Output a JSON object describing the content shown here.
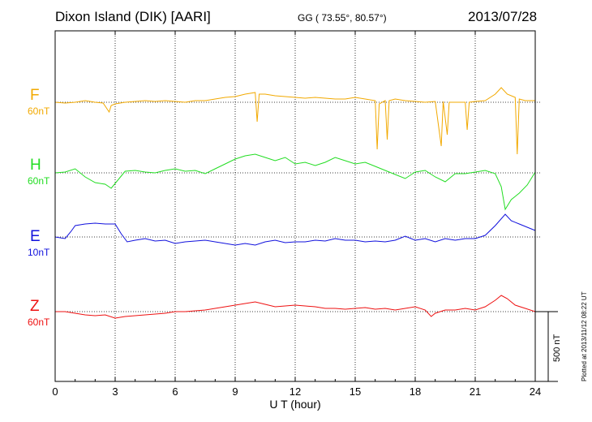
{
  "header": {
    "station": "Dixon Island (DIK)  [AARI]",
    "coords": "GG ( 73.55°,  80.57°)",
    "date": "2013/07/28"
  },
  "footer": {
    "plotted": "Plotted at 2013/11/12 08:22 UT",
    "scale_bar_label": "500 nT"
  },
  "chart_data": {
    "type": "line",
    "xlabel": "U T (hour)",
    "xlim": [
      0,
      24
    ],
    "x_ticks": [
      "0",
      "3",
      "6",
      "9",
      "12",
      "15",
      "18",
      "21",
      "24"
    ],
    "grid": true,
    "series": [
      {
        "name": "F",
        "scale": "60nT",
        "color": "#f2a900",
        "points": [
          [
            0,
            126
          ],
          [
            0.5,
            127
          ],
          [
            1,
            126
          ],
          [
            1.5,
            124
          ],
          [
            2,
            126
          ],
          [
            2.4,
            127
          ],
          [
            2.7,
            138
          ],
          [
            2.8,
            130
          ],
          [
            3,
            128
          ],
          [
            3.5,
            126
          ],
          [
            4,
            125
          ],
          [
            4.5,
            124
          ],
          [
            5,
            125
          ],
          [
            5.5,
            124
          ],
          [
            6,
            125
          ],
          [
            6.5,
            126
          ],
          [
            7,
            124
          ],
          [
            7.5,
            124
          ],
          [
            8,
            122
          ],
          [
            8.5,
            120
          ],
          [
            9,
            119
          ],
          [
            9.5,
            116
          ],
          [
            10,
            114
          ],
          [
            10.1,
            150
          ],
          [
            10.2,
            116
          ],
          [
            10.5,
            116
          ],
          [
            11,
            118
          ],
          [
            11.5,
            119
          ],
          [
            12,
            120
          ],
          [
            12.5,
            121
          ],
          [
            13,
            120
          ],
          [
            13.5,
            121
          ],
          [
            14,
            122
          ],
          [
            14.5,
            122
          ],
          [
            15,
            120
          ],
          [
            15.5,
            122
          ],
          [
            16,
            124
          ],
          [
            16.1,
            184
          ],
          [
            16.2,
            128
          ],
          [
            16.5,
            124
          ],
          [
            16.6,
            172
          ],
          [
            16.7,
            124
          ],
          [
            17,
            122
          ],
          [
            17.5,
            124
          ],
          [
            18,
            125
          ],
          [
            18.5,
            126
          ],
          [
            19,
            125
          ],
          [
            19.3,
            180
          ],
          [
            19.4,
            125
          ],
          [
            19.6,
            166
          ],
          [
            19.7,
            126
          ],
          [
            20,
            126
          ],
          [
            20.5,
            126
          ],
          [
            20.6,
            160
          ],
          [
            20.7,
            126
          ],
          [
            21,
            125
          ],
          [
            21.5,
            124
          ],
          [
            22,
            116
          ],
          [
            22.3,
            108
          ],
          [
            22.6,
            116
          ],
          [
            23,
            120
          ],
          [
            23.1,
            190
          ],
          [
            23.2,
            122
          ],
          [
            23.5,
            124
          ],
          [
            24,
            124
          ]
        ]
      },
      {
        "name": "H",
        "scale": "60nT",
        "color": "#22dd22",
        "points": [
          [
            0,
            213
          ],
          [
            0.5,
            212
          ],
          [
            1,
            208
          ],
          [
            1.5,
            218
          ],
          [
            2,
            225
          ],
          [
            2.5,
            227
          ],
          [
            2.8,
            232
          ],
          [
            3,
            226
          ],
          [
            3.5,
            211
          ],
          [
            4,
            210
          ],
          [
            4.5,
            212
          ],
          [
            5,
            213
          ],
          [
            5.5,
            210
          ],
          [
            6,
            208
          ],
          [
            6.5,
            211
          ],
          [
            7,
            210
          ],
          [
            7.5,
            214
          ],
          [
            8,
            208
          ],
          [
            8.5,
            202
          ],
          [
            9,
            196
          ],
          [
            9.5,
            192
          ],
          [
            10,
            190
          ],
          [
            10.5,
            194
          ],
          [
            11,
            198
          ],
          [
            11.5,
            194
          ],
          [
            12,
            202
          ],
          [
            12.5,
            200
          ],
          [
            13,
            204
          ],
          [
            13.5,
            200
          ],
          [
            14,
            194
          ],
          [
            14.5,
            198
          ],
          [
            15,
            202
          ],
          [
            15.5,
            200
          ],
          [
            16,
            205
          ],
          [
            16.5,
            210
          ],
          [
            17,
            215
          ],
          [
            17.5,
            220
          ],
          [
            18,
            212
          ],
          [
            18.5,
            210
          ],
          [
            19,
            218
          ],
          [
            19.5,
            224
          ],
          [
            20,
            214
          ],
          [
            20.5,
            214
          ],
          [
            21,
            212
          ],
          [
            21.5,
            210
          ],
          [
            22,
            214
          ],
          [
            22.3,
            230
          ],
          [
            22.5,
            258
          ],
          [
            22.8,
            246
          ],
          [
            23.2,
            238
          ],
          [
            23.6,
            228
          ],
          [
            24,
            212
          ]
        ]
      },
      {
        "name": "E",
        "scale": "10nT",
        "color": "#1111dd",
        "points": [
          [
            0,
            292
          ],
          [
            0.5,
            294
          ],
          [
            0.8,
            285
          ],
          [
            1,
            278
          ],
          [
            1.5,
            276
          ],
          [
            2,
            275
          ],
          [
            2.5,
            276
          ],
          [
            3,
            276
          ],
          [
            3.3,
            288
          ],
          [
            3.6,
            298
          ],
          [
            4,
            296
          ],
          [
            4.5,
            294
          ],
          [
            5,
            297
          ],
          [
            5.5,
            296
          ],
          [
            6,
            300
          ],
          [
            6.5,
            298
          ],
          [
            7,
            297
          ],
          [
            7.5,
            296
          ],
          [
            8,
            298
          ],
          [
            8.5,
            300
          ],
          [
            9,
            302
          ],
          [
            9.5,
            300
          ],
          [
            10,
            302
          ],
          [
            10.5,
            298
          ],
          [
            11,
            296
          ],
          [
            11.5,
            299
          ],
          [
            12,
            298
          ],
          [
            12.5,
            298
          ],
          [
            13,
            296
          ],
          [
            13.5,
            297
          ],
          [
            14,
            294
          ],
          [
            14.5,
            296
          ],
          [
            15,
            296
          ],
          [
            15.5,
            298
          ],
          [
            16,
            297
          ],
          [
            16.5,
            298
          ],
          [
            17,
            296
          ],
          [
            17.5,
            291
          ],
          [
            18,
            296
          ],
          [
            18.5,
            294
          ],
          [
            19,
            298
          ],
          [
            19.5,
            294
          ],
          [
            20,
            296
          ],
          [
            20.5,
            294
          ],
          [
            21,
            294
          ],
          [
            21.5,
            290
          ],
          [
            22,
            278
          ],
          [
            22.5,
            264
          ],
          [
            22.8,
            272
          ],
          [
            23.2,
            276
          ],
          [
            23.6,
            280
          ],
          [
            24,
            284
          ]
        ]
      },
      {
        "name": "Z",
        "scale": "60nT",
        "color": "#ee1111",
        "points": [
          [
            0,
            384
          ],
          [
            0.5,
            384
          ],
          [
            1,
            386
          ],
          [
            1.5,
            388
          ],
          [
            2,
            389
          ],
          [
            2.5,
            388
          ],
          [
            3,
            392
          ],
          [
            3.5,
            390
          ],
          [
            4,
            389
          ],
          [
            4.5,
            388
          ],
          [
            5,
            387
          ],
          [
            5.5,
            386
          ],
          [
            6,
            384
          ],
          [
            6.5,
            384
          ],
          [
            7,
            383
          ],
          [
            7.5,
            382
          ],
          [
            8,
            380
          ],
          [
            8.5,
            378
          ],
          [
            9,
            376
          ],
          [
            9.5,
            374
          ],
          [
            10,
            372
          ],
          [
            10.5,
            375
          ],
          [
            11,
            378
          ],
          [
            11.5,
            377
          ],
          [
            12,
            376
          ],
          [
            12.5,
            377
          ],
          [
            13,
            378
          ],
          [
            13.5,
            380
          ],
          [
            14,
            380
          ],
          [
            14.5,
            381
          ],
          [
            15,
            380
          ],
          [
            15.5,
            379
          ],
          [
            16,
            381
          ],
          [
            16.5,
            380
          ],
          [
            17,
            382
          ],
          [
            17.5,
            380
          ],
          [
            18,
            378
          ],
          [
            18.5,
            382
          ],
          [
            18.8,
            390
          ],
          [
            19,
            386
          ],
          [
            19.5,
            382
          ],
          [
            20,
            382
          ],
          [
            20.5,
            380
          ],
          [
            21,
            382
          ],
          [
            21.5,
            378
          ],
          [
            22,
            370
          ],
          [
            22.3,
            364
          ],
          [
            22.6,
            368
          ],
          [
            23,
            376
          ],
          [
            23.5,
            380
          ],
          [
            24,
            384
          ]
        ]
      }
    ]
  }
}
